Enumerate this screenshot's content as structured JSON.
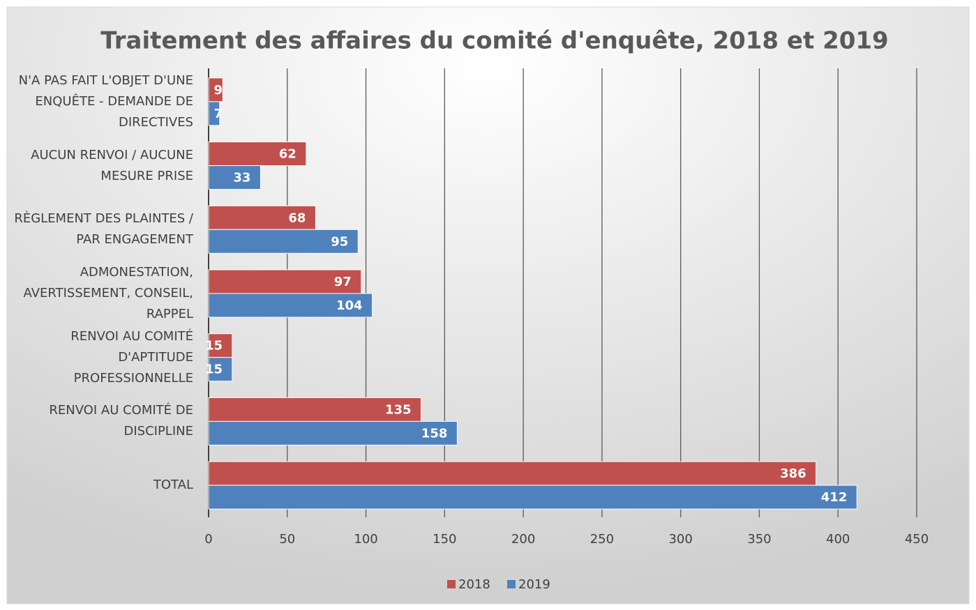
{
  "chart_data": {
    "type": "hbar",
    "title": "Traitement des affaires du comité d'enquête, 2018 et 2019",
    "categories": [
      "N'A PAS FAIT L'OBJET D'UNE ENQUÊTE - DEMANDE DE DIRECTIVES",
      "AUCUN RENVOI / AUCUNE MESURE PRISE",
      "RÈGLEMENT DES PLAINTES / PAR ENGAGEMENT",
      "ADMONESTATION, AVERTISSEMENT, CONSEIL, RAPPEL",
      "RENVOI AU COMITÉ D'APTITUDE PROFESSIONNELLE",
      "RENVOI AU COMITÉ DE DISCIPLINE",
      "TOTAL"
    ],
    "series": [
      {
        "name": "2018",
        "color": "#c0504d",
        "values": [
          9,
          62,
          68,
          97,
          15,
          135,
          386
        ]
      },
      {
        "name": "2019",
        "color": "#4f81bd",
        "values": [
          7,
          33,
          95,
          104,
          15,
          158,
          412
        ]
      }
    ],
    "xlim": [
      0,
      450
    ],
    "xticks": [
      0,
      50,
      100,
      150,
      200,
      250,
      300,
      350,
      400,
      450
    ],
    "grid": true,
    "legend": "bottom"
  }
}
